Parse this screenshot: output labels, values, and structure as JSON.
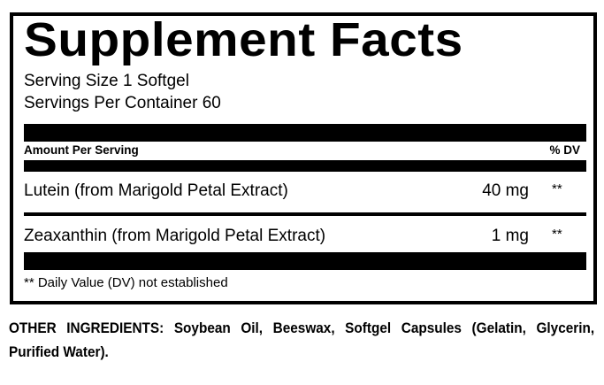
{
  "title": "Supplement Facts",
  "serving_size": "Serving Size 1 Softgel",
  "servings_per_container": "Servings Per Container 60",
  "header": {
    "amount_label": "Amount Per Serving",
    "dv_label": "% DV"
  },
  "rows": [
    {
      "name": "Lutein (from Marigold Petal Extract)",
      "amount": "40 mg",
      "dv": "**"
    },
    {
      "name": "Zeaxanthin (from Marigold Petal Extract)",
      "amount": "1 mg",
      "dv": "**"
    }
  ],
  "footnote": "** Daily Value (DV) not established",
  "other_ingredients": "OTHER INGREDIENTS: Soybean Oil, Beeswax, Softgel Capsules (Gelatin, Glycerin, Purified Water)."
}
